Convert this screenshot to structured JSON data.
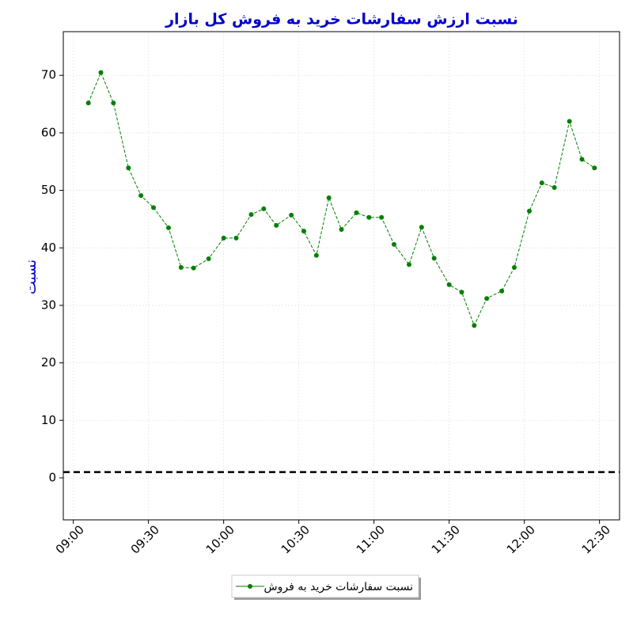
{
  "chart_data": {
    "type": "line",
    "title": "نسبت ارزش سفارشات خرید به فروش کل بازار",
    "y_label": "نسبت",
    "x": [
      "09:06",
      "09:11",
      "09:16",
      "09:22",
      "09:27",
      "09:32",
      "09:38",
      "09:43",
      "09:48",
      "09:54",
      "10:00",
      "10:05",
      "10:11",
      "10:16",
      "10:21",
      "10:27",
      "10:32",
      "10:37",
      "10:42",
      "10:47",
      "10:53",
      "10:58",
      "11:03",
      "11:08",
      "11:14",
      "11:19",
      "11:24",
      "11:30",
      "11:35",
      "11:40",
      "11:45",
      "11:51",
      "11:56",
      "12:02",
      "12:07",
      "12:12",
      "12:18",
      "12:23",
      "12:28"
    ],
    "series": [
      {
        "name": "نسبت سفارشات خرید به فروش",
        "color": "#008000",
        "values": [
          65.2,
          70.5,
          65.2,
          53.9,
          49.1,
          47.0,
          43.5,
          36.6,
          36.5,
          38.1,
          41.7,
          41.7,
          45.8,
          46.8,
          43.9,
          45.7,
          42.9,
          38.7,
          48.7,
          43.2,
          46.1,
          45.3,
          45.3,
          40.6,
          37.1,
          43.6,
          38.2,
          33.6,
          32.3,
          26.5,
          31.2,
          32.5,
          36.6,
          46.4,
          51.3,
          50.5,
          62.0,
          55.4,
          53.9
        ]
      }
    ],
    "hline": 1,
    "xlim": [
      "08:56",
      "12:38"
    ],
    "xticks": [
      "09:00",
      "09:30",
      "10:00",
      "10:30",
      "11:00",
      "11:30",
      "12:00",
      "12:30"
    ],
    "ylim": [
      -7.3,
      77.6
    ],
    "yticks": [
      0,
      10,
      20,
      30,
      40,
      50,
      60,
      70
    ],
    "grid": true,
    "legend": "bottom"
  }
}
